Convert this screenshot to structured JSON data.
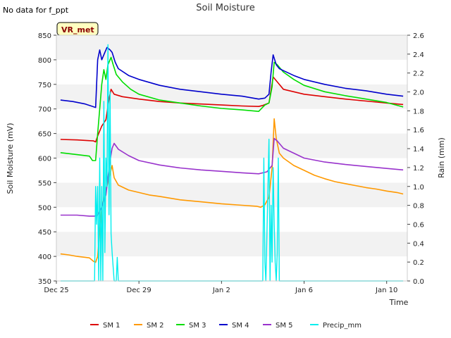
{
  "chart_data": {
    "type": "line",
    "title": "Soil Moisture",
    "note": "No data for f_ppt",
    "badge": "VR_met",
    "xlabel": "Time",
    "ylabel": "Soil Moisture (mV)",
    "y2label": "Rain (mm)",
    "xlim": [
      0,
      17
    ],
    "ylim": [
      350,
      850
    ],
    "y2lim": [
      0.0,
      2.6
    ],
    "x_unit": "days since Dec 25",
    "xticks": [
      {
        "x": 0,
        "label": "Dec 25"
      },
      {
        "x": 4,
        "label": "Dec 29"
      },
      {
        "x": 8,
        "label": "Jan 2"
      },
      {
        "x": 12,
        "label": "Jan 6"
      },
      {
        "x": 16,
        "label": "Jan 10"
      }
    ],
    "yticks": [
      350,
      400,
      450,
      500,
      550,
      600,
      650,
      700,
      750,
      800,
      850
    ],
    "y2ticks": [
      "0.0",
      "0.2",
      "0.4",
      "0.6",
      "0.8",
      "1.0",
      "1.2",
      "1.4",
      "1.6",
      "1.8",
      "2.0",
      "2.2",
      "2.4",
      "2.6"
    ],
    "series": [
      {
        "name": "SM 1",
        "axis": "left",
        "color": "#dd0000",
        "points": [
          [
            0.2,
            638
          ],
          [
            1.0,
            637
          ],
          [
            1.8,
            635
          ],
          [
            1.9,
            633
          ],
          [
            2.0,
            645
          ],
          [
            2.2,
            665
          ],
          [
            2.4,
            678
          ],
          [
            2.55,
            720
          ],
          [
            2.65,
            740
          ],
          [
            2.8,
            730
          ],
          [
            3.2,
            725
          ],
          [
            4,
            720
          ],
          [
            5,
            715
          ],
          [
            6,
            712
          ],
          [
            7,
            710
          ],
          [
            8,
            708
          ],
          [
            9,
            706
          ],
          [
            9.8,
            705
          ],
          [
            10,
            707
          ],
          [
            10.3,
            712
          ],
          [
            10.5,
            765
          ],
          [
            10.7,
            755
          ],
          [
            11,
            740
          ],
          [
            12,
            730
          ],
          [
            13,
            725
          ],
          [
            14,
            720
          ],
          [
            15,
            716
          ],
          [
            16,
            712
          ],
          [
            16.8,
            709
          ]
        ]
      },
      {
        "name": "SM 2",
        "axis": "left",
        "color": "#ff9900",
        "points": [
          [
            0.2,
            405
          ],
          [
            0.6,
            403
          ],
          [
            1.0,
            400
          ],
          [
            1.6,
            397
          ],
          [
            1.8,
            390
          ],
          [
            1.9,
            388
          ],
          [
            2.0,
            400
          ],
          [
            2.1,
            450
          ],
          [
            2.2,
            500
          ],
          [
            2.35,
            525
          ],
          [
            2.55,
            560
          ],
          [
            2.7,
            585
          ],
          [
            2.8,
            560
          ],
          [
            3.0,
            545
          ],
          [
            3.5,
            535
          ],
          [
            4,
            530
          ],
          [
            4.5,
            525
          ],
          [
            5,
            522
          ],
          [
            6,
            515
          ],
          [
            7,
            511
          ],
          [
            8,
            507
          ],
          [
            9,
            504
          ],
          [
            9.7,
            502
          ],
          [
            9.9,
            500
          ],
          [
            10.1,
            505
          ],
          [
            10.3,
            520
          ],
          [
            10.45,
            580
          ],
          [
            10.55,
            680
          ],
          [
            10.65,
            640
          ],
          [
            10.8,
            610
          ],
          [
            11,
            600
          ],
          [
            11.5,
            585
          ],
          [
            12,
            575
          ],
          [
            12.5,
            565
          ],
          [
            13,
            558
          ],
          [
            13.5,
            552
          ],
          [
            14,
            548
          ],
          [
            14.5,
            544
          ],
          [
            15,
            540
          ],
          [
            15.5,
            537
          ],
          [
            16,
            533
          ],
          [
            16.5,
            530
          ],
          [
            16.8,
            527
          ]
        ]
      },
      {
        "name": "SM 3",
        "axis": "left",
        "color": "#00dd00",
        "points": [
          [
            0.2,
            611
          ],
          [
            1.0,
            607
          ],
          [
            1.6,
            604
          ],
          [
            1.75,
            595
          ],
          [
            1.9,
            595
          ],
          [
            2.0,
            650
          ],
          [
            2.1,
            700
          ],
          [
            2.2,
            750
          ],
          [
            2.3,
            780
          ],
          [
            2.4,
            760
          ],
          [
            2.5,
            790
          ],
          [
            2.65,
            805
          ],
          [
            2.75,
            790
          ],
          [
            2.9,
            770
          ],
          [
            3.2,
            755
          ],
          [
            3.6,
            740
          ],
          [
            4,
            730
          ],
          [
            5,
            718
          ],
          [
            6,
            712
          ],
          [
            7,
            706
          ],
          [
            8,
            701
          ],
          [
            9,
            698
          ],
          [
            9.8,
            695
          ],
          [
            10.1,
            708
          ],
          [
            10.3,
            712
          ],
          [
            10.45,
            745
          ],
          [
            10.55,
            795
          ],
          [
            10.7,
            790
          ],
          [
            11,
            775
          ],
          [
            11.5,
            760
          ],
          [
            12,
            748
          ],
          [
            13,
            735
          ],
          [
            14,
            727
          ],
          [
            15,
            720
          ],
          [
            16,
            713
          ],
          [
            16.8,
            704
          ]
        ]
      },
      {
        "name": "SM 4",
        "axis": "left",
        "color": "#0000cc",
        "points": [
          [
            0.2,
            718
          ],
          [
            0.8,
            715
          ],
          [
            1.4,
            710
          ],
          [
            1.9,
            703
          ],
          [
            2.0,
            800
          ],
          [
            2.1,
            820
          ],
          [
            2.2,
            800
          ],
          [
            2.35,
            815
          ],
          [
            2.45,
            825
          ],
          [
            2.6,
            820
          ],
          [
            2.7,
            815
          ],
          [
            2.85,
            795
          ],
          [
            3.0,
            782
          ],
          [
            3.5,
            768
          ],
          [
            4,
            760
          ],
          [
            5,
            748
          ],
          [
            6,
            740
          ],
          [
            7,
            735
          ],
          [
            8,
            730
          ],
          [
            9,
            726
          ],
          [
            9.8,
            720
          ],
          [
            10.1,
            722
          ],
          [
            10.3,
            730
          ],
          [
            10.4,
            775
          ],
          [
            10.5,
            810
          ],
          [
            10.65,
            790
          ],
          [
            10.8,
            782
          ],
          [
            11,
            778
          ],
          [
            11.5,
            768
          ],
          [
            12,
            760
          ],
          [
            13,
            750
          ],
          [
            14,
            742
          ],
          [
            15,
            737
          ],
          [
            16,
            730
          ],
          [
            16.8,
            726
          ]
        ]
      },
      {
        "name": "SM 5",
        "axis": "left",
        "color": "#9933cc",
        "points": [
          [
            0.2,
            484
          ],
          [
            1.0,
            484
          ],
          [
            1.6,
            482
          ],
          [
            1.85,
            482
          ],
          [
            2.0,
            484
          ],
          [
            2.2,
            500
          ],
          [
            2.3,
            515
          ],
          [
            2.4,
            525
          ],
          [
            2.5,
            560
          ],
          [
            2.6,
            595
          ],
          [
            2.7,
            620
          ],
          [
            2.8,
            630
          ],
          [
            3.0,
            618
          ],
          [
            3.5,
            605
          ],
          [
            4,
            595
          ],
          [
            5,
            586
          ],
          [
            6,
            580
          ],
          [
            7,
            576
          ],
          [
            8,
            573
          ],
          [
            9,
            570
          ],
          [
            9.8,
            568
          ],
          [
            10.2,
            572
          ],
          [
            10.45,
            585
          ],
          [
            10.55,
            640
          ],
          [
            10.7,
            635
          ],
          [
            11,
            620
          ],
          [
            11.5,
            610
          ],
          [
            12,
            600
          ],
          [
            13,
            592
          ],
          [
            14,
            587
          ],
          [
            15,
            583
          ],
          [
            16,
            579
          ],
          [
            16.8,
            576
          ]
        ]
      },
      {
        "name": "Precip_mm",
        "axis": "right",
        "color": "#00eeee",
        "points": [
          [
            0.2,
            0
          ],
          [
            1.85,
            0
          ],
          [
            1.9,
            1.0
          ],
          [
            1.95,
            0.6
          ],
          [
            2.0,
            1.0
          ],
          [
            2.05,
            0
          ],
          [
            2.1,
            1.3
          ],
          [
            2.15,
            0
          ],
          [
            2.2,
            1.0
          ],
          [
            2.25,
            0
          ],
          [
            2.3,
            1.9
          ],
          [
            2.35,
            0.3
          ],
          [
            2.4,
            1.3
          ],
          [
            2.45,
            1.0
          ],
          [
            2.5,
            2.5
          ],
          [
            2.55,
            0.7
          ],
          [
            2.6,
            2.0
          ],
          [
            2.65,
            0.5
          ],
          [
            2.7,
            0.3
          ],
          [
            2.8,
            0
          ],
          [
            2.9,
            0
          ],
          [
            2.95,
            0.25
          ],
          [
            3.0,
            0
          ],
          [
            10.0,
            0
          ],
          [
            10.05,
            1.3
          ],
          [
            10.1,
            0.2
          ],
          [
            10.15,
            0
          ],
          [
            10.2,
            0.5
          ],
          [
            10.3,
            1.5
          ],
          [
            10.35,
            0
          ],
          [
            10.4,
            0.8
          ],
          [
            10.45,
            0.2
          ],
          [
            10.5,
            1.2
          ],
          [
            10.55,
            0.6
          ],
          [
            10.6,
            0.2
          ],
          [
            10.65,
            0
          ],
          [
            10.7,
            0.3
          ],
          [
            10.75,
            1.3
          ],
          [
            10.8,
            0
          ],
          [
            16.8,
            0
          ]
        ]
      }
    ]
  }
}
